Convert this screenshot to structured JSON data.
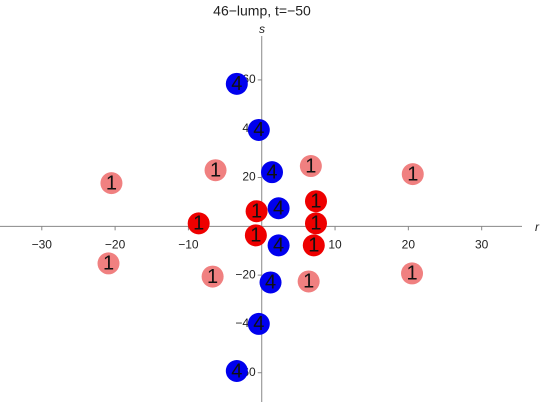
{
  "chart_data": {
    "type": "scatter",
    "title": "46−lump, t=−50",
    "x_label": "r",
    "y_label": "s",
    "xlim": [
      -35.7,
      35.5
    ],
    "ylim": [
      -72,
      78
    ],
    "xticks": [
      {
        "value": -30,
        "label": "−30"
      },
      {
        "value": -20,
        "label": "−20"
      },
      {
        "value": -10,
        "label": "−10"
      },
      10,
      20,
      30
    ],
    "yticks": [
      {
        "value": -60,
        "label": "−60"
      },
      {
        "value": -40,
        "label": "−40"
      },
      {
        "value": -20,
        "label": "−20"
      },
      20,
      40,
      60
    ],
    "series": [
      {
        "color": "#0000ee",
        "marker_label": "4",
        "x": [
          -3.4,
          -0.4,
          1.4,
          2.3,
          2.3,
          1.2,
          -0.4,
          -3.4
        ],
        "values": [
          58.4,
          39.5,
          22.2,
          7.4,
          -7.8,
          -23,
          -40,
          -59.3
        ]
      },
      {
        "color": "#ee0000",
        "marker_label": "1",
        "x": [
          -0.7,
          7.4,
          -8.6,
          7.4,
          -0.8,
          7.1
        ],
        "values": [
          6.2,
          10.3,
          1.2,
          1.2,
          -3.7,
          -7.8
        ]
      },
      {
        "color": "#f08080",
        "marker_label": "1",
        "x": [
          -6.3,
          6.7,
          -20.5,
          20.6,
          -20.9,
          -6.7,
          6.4,
          20.5
        ],
        "values": [
          23,
          24.7,
          17.7,
          21.4,
          -15.2,
          -20.6,
          -22.6,
          -19.3
        ]
      }
    ]
  }
}
